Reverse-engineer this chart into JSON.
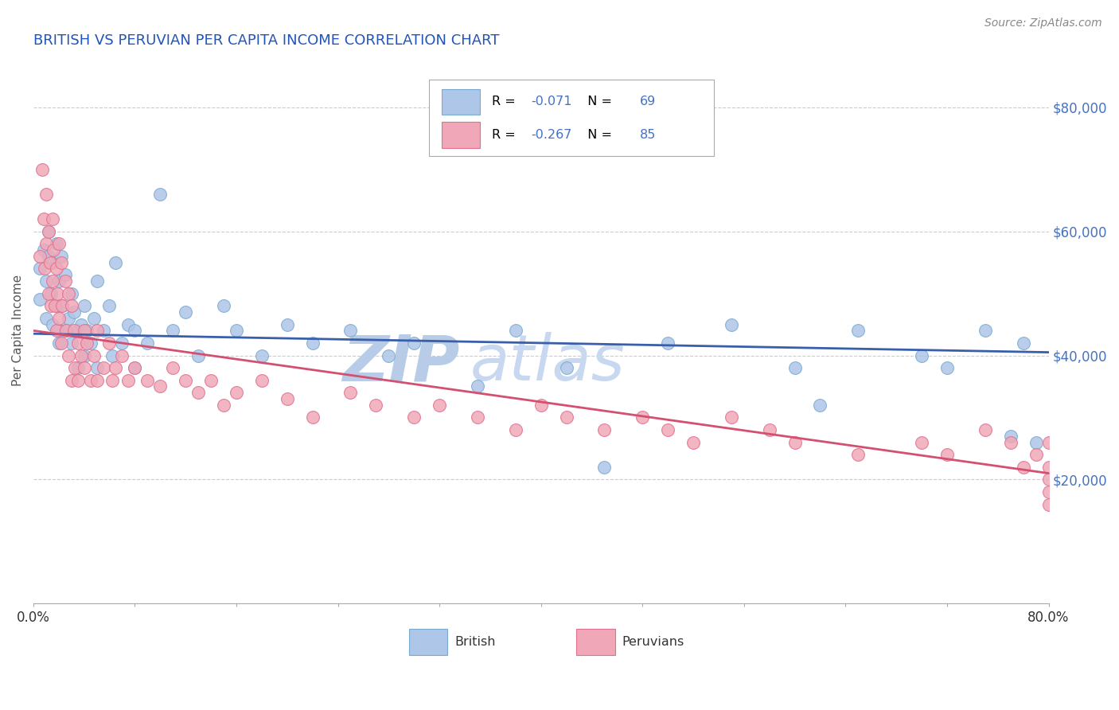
{
  "title": "BRITISH VS PERUVIAN PER CAPITA INCOME CORRELATION CHART",
  "source": "Source: ZipAtlas.com",
  "ylabel": "Per Capita Income",
  "xlim": [
    0.0,
    0.8
  ],
  "ylim": [
    0,
    88000
  ],
  "xticks": [
    0.0,
    0.08,
    0.16,
    0.24,
    0.32,
    0.4,
    0.48,
    0.56,
    0.64,
    0.72,
    0.8
  ],
  "xticklabels": [
    "0.0%",
    "",
    "",
    "",
    "",
    "",
    "",
    "",
    "",
    "",
    "80.0%"
  ],
  "yticks": [
    0,
    20000,
    40000,
    60000,
    80000
  ],
  "yticklabels": [
    "",
    "$20,000",
    "$40,000",
    "$60,000",
    "$80,000"
  ],
  "british_color": "#aec6e8",
  "peruvian_color": "#f0a8b8",
  "british_edge_color": "#7aaad0",
  "peruvian_edge_color": "#e07090",
  "british_line_color": "#3a5faa",
  "peruvian_line_color": "#d45070",
  "r_british": -0.071,
  "n_british": 69,
  "r_peruvian": -0.267,
  "n_peruvian": 85,
  "watermark_zip": "ZIP",
  "watermark_atlas": "atlas",
  "watermark_color_zip": "#b8cce8",
  "watermark_color_atlas": "#c8d8f0",
  "title_color": "#2255bb",
  "title_fontsize": 13,
  "ylabel_color": "#555555",
  "yticklabel_color": "#4472c4",
  "legend_r_color": "#4472c4",
  "legend_n_color": "#000000",
  "british_line_y0": 43500,
  "british_line_y1": 40500,
  "peruvian_line_y0": 44000,
  "peruvian_line_y1": 21000,
  "british_x": [
    0.005,
    0.005,
    0.008,
    0.01,
    0.01,
    0.012,
    0.012,
    0.014,
    0.015,
    0.015,
    0.018,
    0.018,
    0.02,
    0.02,
    0.02,
    0.022,
    0.023,
    0.025,
    0.025,
    0.028,
    0.03,
    0.03,
    0.032,
    0.035,
    0.035,
    0.038,
    0.04,
    0.04,
    0.042,
    0.045,
    0.048,
    0.05,
    0.05,
    0.055,
    0.06,
    0.062,
    0.065,
    0.07,
    0.075,
    0.08,
    0.08,
    0.09,
    0.1,
    0.11,
    0.12,
    0.13,
    0.15,
    0.16,
    0.18,
    0.2,
    0.22,
    0.25,
    0.28,
    0.3,
    0.35,
    0.38,
    0.42,
    0.45,
    0.5,
    0.55,
    0.6,
    0.62,
    0.65,
    0.7,
    0.72,
    0.75,
    0.77,
    0.78,
    0.79
  ],
  "british_y": [
    54000,
    49000,
    57000,
    52000,
    46000,
    60000,
    56000,
    50000,
    55000,
    45000,
    58000,
    48000,
    52000,
    44000,
    42000,
    56000,
    48000,
    53000,
    44000,
    46000,
    50000,
    42000,
    47000,
    44000,
    38000,
    45000,
    48000,
    40000,
    44000,
    42000,
    46000,
    52000,
    38000,
    44000,
    48000,
    40000,
    55000,
    42000,
    45000,
    44000,
    38000,
    42000,
    66000,
    44000,
    47000,
    40000,
    48000,
    44000,
    40000,
    45000,
    42000,
    44000,
    40000,
    42000,
    35000,
    44000,
    38000,
    22000,
    42000,
    45000,
    38000,
    32000,
    44000,
    40000,
    38000,
    44000,
    27000,
    42000,
    26000
  ],
  "peruvian_x": [
    0.005,
    0.007,
    0.008,
    0.009,
    0.01,
    0.01,
    0.012,
    0.012,
    0.013,
    0.014,
    0.015,
    0.015,
    0.016,
    0.017,
    0.018,
    0.018,
    0.019,
    0.02,
    0.02,
    0.022,
    0.022,
    0.023,
    0.025,
    0.026,
    0.028,
    0.028,
    0.03,
    0.03,
    0.032,
    0.033,
    0.035,
    0.035,
    0.038,
    0.04,
    0.04,
    0.042,
    0.045,
    0.048,
    0.05,
    0.05,
    0.055,
    0.06,
    0.062,
    0.065,
    0.07,
    0.075,
    0.08,
    0.09,
    0.1,
    0.11,
    0.12,
    0.13,
    0.14,
    0.15,
    0.16,
    0.18,
    0.2,
    0.22,
    0.25,
    0.27,
    0.3,
    0.32,
    0.35,
    0.38,
    0.4,
    0.42,
    0.45,
    0.48,
    0.5,
    0.52,
    0.55,
    0.58,
    0.6,
    0.65,
    0.7,
    0.72,
    0.75,
    0.77,
    0.78,
    0.79,
    0.8,
    0.8,
    0.8,
    0.8,
    0.8
  ],
  "peruvian_y": [
    56000,
    70000,
    62000,
    54000,
    66000,
    58000,
    60000,
    50000,
    55000,
    48000,
    62000,
    52000,
    57000,
    48000,
    54000,
    44000,
    50000,
    58000,
    46000,
    55000,
    42000,
    48000,
    52000,
    44000,
    50000,
    40000,
    48000,
    36000,
    44000,
    38000,
    42000,
    36000,
    40000,
    44000,
    38000,
    42000,
    36000,
    40000,
    44000,
    36000,
    38000,
    42000,
    36000,
    38000,
    40000,
    36000,
    38000,
    36000,
    35000,
    38000,
    36000,
    34000,
    36000,
    32000,
    34000,
    36000,
    33000,
    30000,
    34000,
    32000,
    30000,
    32000,
    30000,
    28000,
    32000,
    30000,
    28000,
    30000,
    28000,
    26000,
    30000,
    28000,
    26000,
    24000,
    26000,
    24000,
    28000,
    26000,
    22000,
    24000,
    22000,
    20000,
    26000,
    18000,
    16000
  ]
}
